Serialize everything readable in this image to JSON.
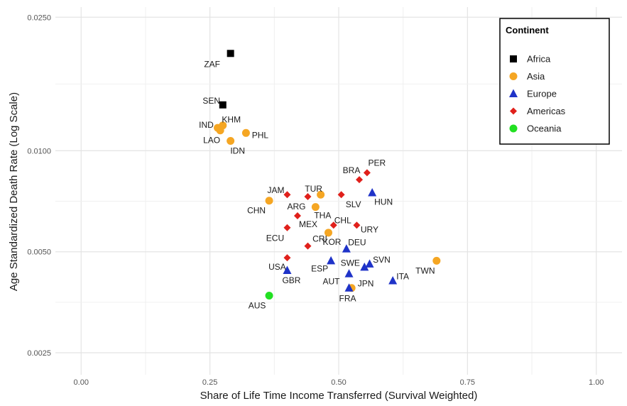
{
  "chart_data": {
    "type": "scatter",
    "xlabel": "Share of Life Time Income Transferred (Survival Weighted)",
    "ylabel": "Age Standardized Death Rate (Log Scale)",
    "xlim": [
      -0.05,
      1.05
    ],
    "ylim": [
      0.00215,
      0.0268
    ],
    "y_scale": "log",
    "grid": true,
    "x_ticks": [
      {
        "value": 0.0,
        "label": "0.00"
      },
      {
        "value": 0.25,
        "label": "0.25"
      },
      {
        "value": 0.5,
        "label": "0.50"
      },
      {
        "value": 0.75,
        "label": "0.75"
      },
      {
        "value": 1.0,
        "label": "1.00"
      }
    ],
    "y_ticks": [
      {
        "value": 0.0025,
        "label": "0.0025"
      },
      {
        "value": 0.005,
        "label": "0.0050"
      },
      {
        "value": 0.01,
        "label": "0.0100"
      },
      {
        "value": 0.025,
        "label": "0.0250"
      }
    ],
    "legend": {
      "title": "Continent",
      "position": "top-right",
      "entries": [
        {
          "name": "Africa",
          "shape": "square",
          "color": "#000000"
        },
        {
          "name": "Asia",
          "shape": "circle",
          "color": "#F5A623"
        },
        {
          "name": "Europe",
          "shape": "triangle",
          "color": "#1F33C8"
        },
        {
          "name": "Americas",
          "shape": "diamond",
          "color": "#E0201B"
        },
        {
          "name": "Oceania",
          "shape": "circle",
          "color": "#22E022"
        }
      ]
    },
    "series": [
      {
        "name": "Africa",
        "points": [
          {
            "label": "ZAF",
            "x": 0.29,
            "y": 0.0195
          },
          {
            "label": "SEN",
            "x": 0.275,
            "y": 0.0137
          }
        ]
      },
      {
        "name": "Asia",
        "points": [
          {
            "label": "IND",
            "x": 0.265,
            "y": 0.0117
          },
          {
            "label": "KHM",
            "x": 0.275,
            "y": 0.0119
          },
          {
            "label": "LAO",
            "x": 0.27,
            "y": 0.0115
          },
          {
            "label": "PHL",
            "x": 0.32,
            "y": 0.0113
          },
          {
            "label": "IDN",
            "x": 0.29,
            "y": 0.0107
          },
          {
            "label": "CHN",
            "x": 0.365,
            "y": 0.0071
          },
          {
            "label": "TUR",
            "x": 0.465,
            "y": 0.0074
          },
          {
            "label": "THA",
            "x": 0.455,
            "y": 0.0068
          },
          {
            "label": "KOR",
            "x": 0.48,
            "y": 0.0057
          },
          {
            "label": "TWN",
            "x": 0.69,
            "y": 0.0047
          },
          {
            "label": "JPN",
            "x": 0.525,
            "y": 0.0039
          }
        ]
      },
      {
        "name": "Europe",
        "points": [
          {
            "label": "HUN",
            "x": 0.565,
            "y": 0.0075
          },
          {
            "label": "DEU",
            "x": 0.515,
            "y": 0.0051
          },
          {
            "label": "ESP",
            "x": 0.485,
            "y": 0.0047
          },
          {
            "label": "SVN",
            "x": 0.56,
            "y": 0.0046
          },
          {
            "label": "SWE",
            "x": 0.55,
            "y": 0.0045
          },
          {
            "label": "GBR",
            "x": 0.4,
            "y": 0.0044
          },
          {
            "label": "AUT",
            "x": 0.52,
            "y": 0.0043
          },
          {
            "label": "ITA",
            "x": 0.605,
            "y": 0.0041
          },
          {
            "label": "FRA",
            "x": 0.52,
            "y": 0.0039
          }
        ]
      },
      {
        "name": "Americas",
        "points": [
          {
            "label": "PER",
            "x": 0.555,
            "y": 0.0086
          },
          {
            "label": "BRA",
            "x": 0.54,
            "y": 0.0082
          },
          {
            "label": "JAM",
            "x": 0.4,
            "y": 0.0074
          },
          {
            "label": "ARG",
            "x": 0.44,
            "y": 0.0073
          },
          {
            "label": "SLV",
            "x": 0.505,
            "y": 0.0074
          },
          {
            "label": "MEX",
            "x": 0.42,
            "y": 0.0064
          },
          {
            "label": "CHL",
            "x": 0.49,
            "y": 0.006
          },
          {
            "label": "URY",
            "x": 0.535,
            "y": 0.006
          },
          {
            "label": "ECU",
            "x": 0.4,
            "y": 0.0059
          },
          {
            "label": "CRI",
            "x": 0.44,
            "y": 0.0052
          },
          {
            "label": "USA",
            "x": 0.4,
            "y": 0.0048
          }
        ]
      },
      {
        "name": "Oceania",
        "points": [
          {
            "label": "AUS",
            "x": 0.365,
            "y": 0.0037
          }
        ]
      }
    ]
  }
}
